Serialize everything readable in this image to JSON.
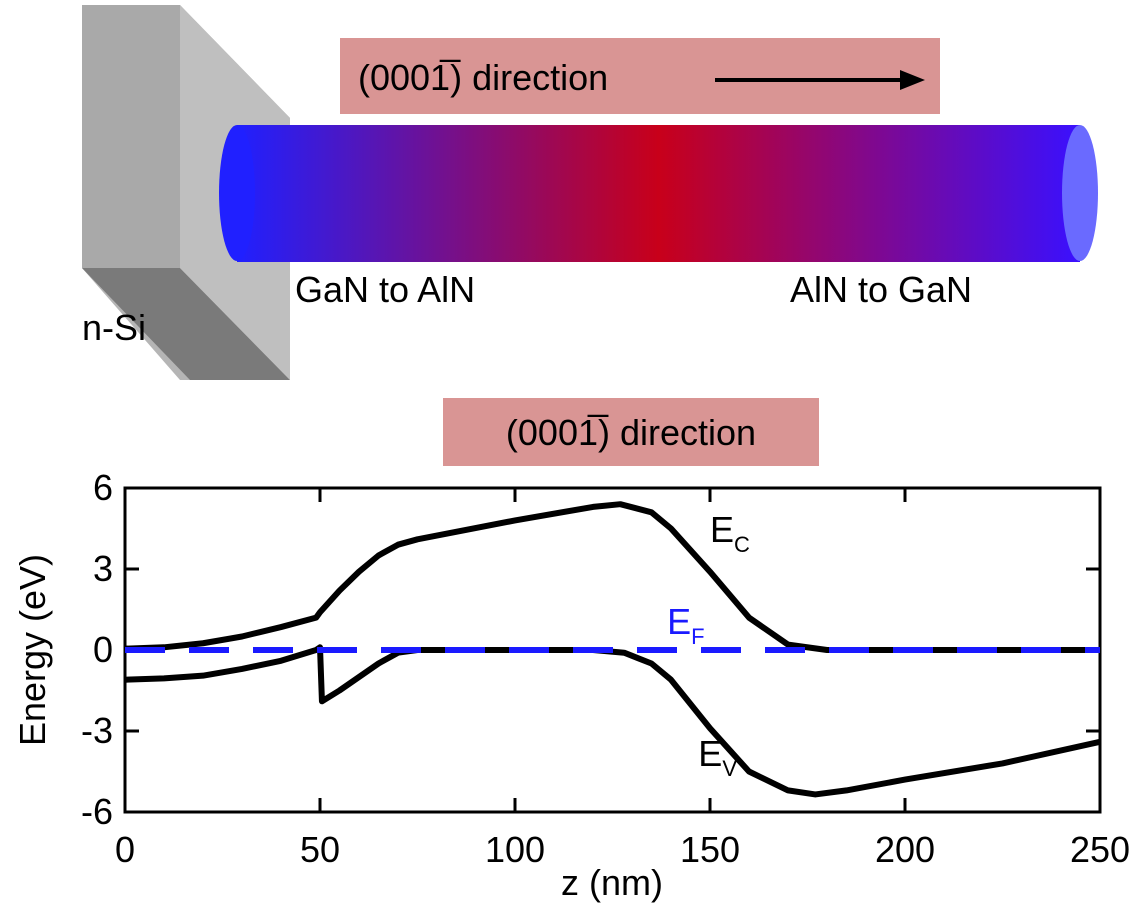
{
  "diagram": {
    "substrate_label": "n-Si",
    "direction_label": "(0001̅) direction",
    "left_label": "GaN to AlN",
    "right_label": "AlN to GaN"
  },
  "chart_data": {
    "type": "line",
    "title": "(0001̅) direction",
    "x_label": "z (nm)",
    "y_label": "Energy (eV)",
    "xlim": [
      0,
      250
    ],
    "xticks": [
      0,
      50,
      100,
      150,
      200,
      250
    ],
    "ylim": [
      -6,
      6
    ],
    "yticks": [
      -6,
      -3,
      0,
      3,
      6
    ],
    "series": [
      {
        "name": "E",
        "subscript": "C",
        "color": "#000000",
        "dash": false,
        "label_x": 150,
        "label_y": 4,
        "x": [
          0,
          10,
          20,
          30,
          40,
          49,
          50,
          55,
          60,
          65,
          70,
          75,
          100,
          120,
          127,
          135,
          140,
          150,
          160,
          170,
          180,
          250
        ],
        "values": [
          0.05,
          0.1,
          0.25,
          0.5,
          0.85,
          1.2,
          1.4,
          2.2,
          2.9,
          3.5,
          3.9,
          4.1,
          4.8,
          5.3,
          5.4,
          5.1,
          4.5,
          2.9,
          1.2,
          0.2,
          0,
          0
        ]
      },
      {
        "name": "E",
        "subscript": "V",
        "color": "#000000",
        "dash": false,
        "label_x": 147,
        "label_y": -4.3,
        "x": [
          0,
          10,
          20,
          30,
          40,
          49,
          50,
          50.5,
          55,
          60,
          65,
          70,
          75,
          120,
          128,
          135,
          140,
          150,
          160,
          170,
          177,
          185,
          200,
          225,
          250
        ],
        "values": [
          -1.1,
          -1.05,
          -0.95,
          -0.7,
          -0.4,
          0,
          0.1,
          -1.9,
          -1.5,
          -1,
          -0.5,
          -0.1,
          0,
          0,
          -0.1,
          -0.5,
          -1.1,
          -2.9,
          -4.5,
          -5.2,
          -5.35,
          -5.2,
          -4.8,
          -4.2,
          -3.4
        ]
      },
      {
        "name": "E",
        "subscript": "F",
        "color": "#1a1aff",
        "dash": true,
        "label_x": 139,
        "label_y": 0.6,
        "x": [
          0,
          250
        ],
        "values": [
          0,
          0
        ]
      }
    ]
  }
}
